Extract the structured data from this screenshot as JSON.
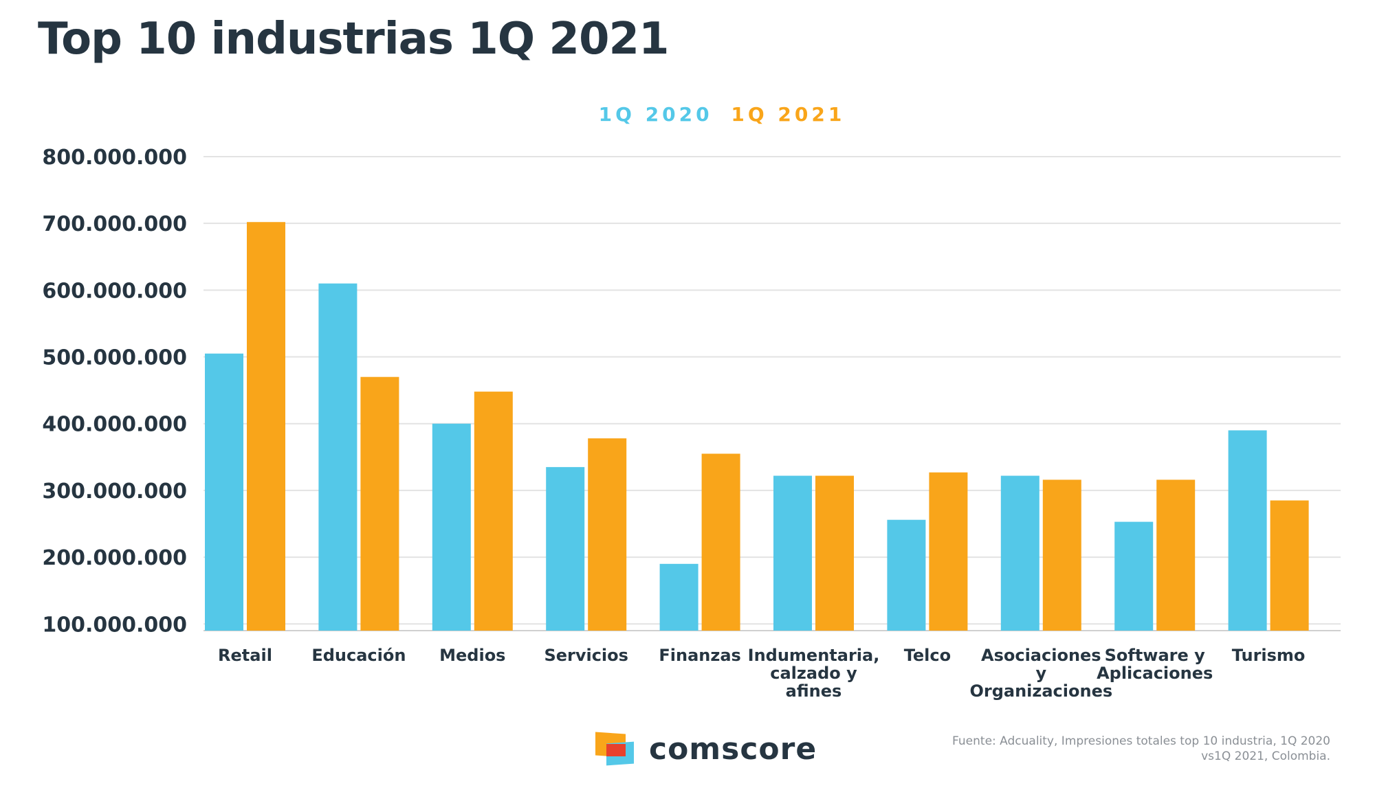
{
  "page": {
    "title": "Top 10 industrias 1Q 2021",
    "legend": {
      "first": "1Q 2020",
      "second": "1Q 2021"
    },
    "logo_text": "comscore",
    "source": "Fuente: Adcuality, Impresiones totales top 10 industria, 1Q 2020 vs1Q 2021, Colombia."
  },
  "colors": {
    "series_2020": "#54c8e8",
    "series_2021": "#f9a51a",
    "text": "#263541",
    "grid": "#e3e3e3"
  },
  "chart_data": {
    "type": "bar",
    "title": "Top 10 industrias 1Q 2021",
    "categories": [
      [
        "Retail"
      ],
      [
        "Educación"
      ],
      [
        "Medios"
      ],
      [
        "Servicios"
      ],
      [
        "Finanzas"
      ],
      [
        "Indumentaria,",
        "calzado y",
        "afines"
      ],
      [
        "Telco"
      ],
      [
        "Asociaciones",
        "y",
        "Organizaciones"
      ],
      [
        "Software y",
        "Aplicaciones"
      ],
      [
        "Turismo"
      ]
    ],
    "series": [
      {
        "name": "1Q 2020",
        "values": [
          505000000,
          610000000,
          400000000,
          335000000,
          190000000,
          322000000,
          256000000,
          322000000,
          253000000,
          390000000
        ]
      },
      {
        "name": "1Q 2021",
        "values": [
          702000000,
          470000000,
          448000000,
          378000000,
          355000000,
          322000000,
          327000000,
          316000000,
          316000000,
          285000000
        ]
      }
    ],
    "yticks": [
      "100.000.000",
      "200.000.000",
      "300.000.000",
      "400.000.000",
      "500.000.000",
      "600.000.000",
      "700.000.000",
      "800.000.000"
    ],
    "ylim": [
      90000000,
      800000000
    ],
    "grid": true,
    "legend_position": "top-center"
  }
}
